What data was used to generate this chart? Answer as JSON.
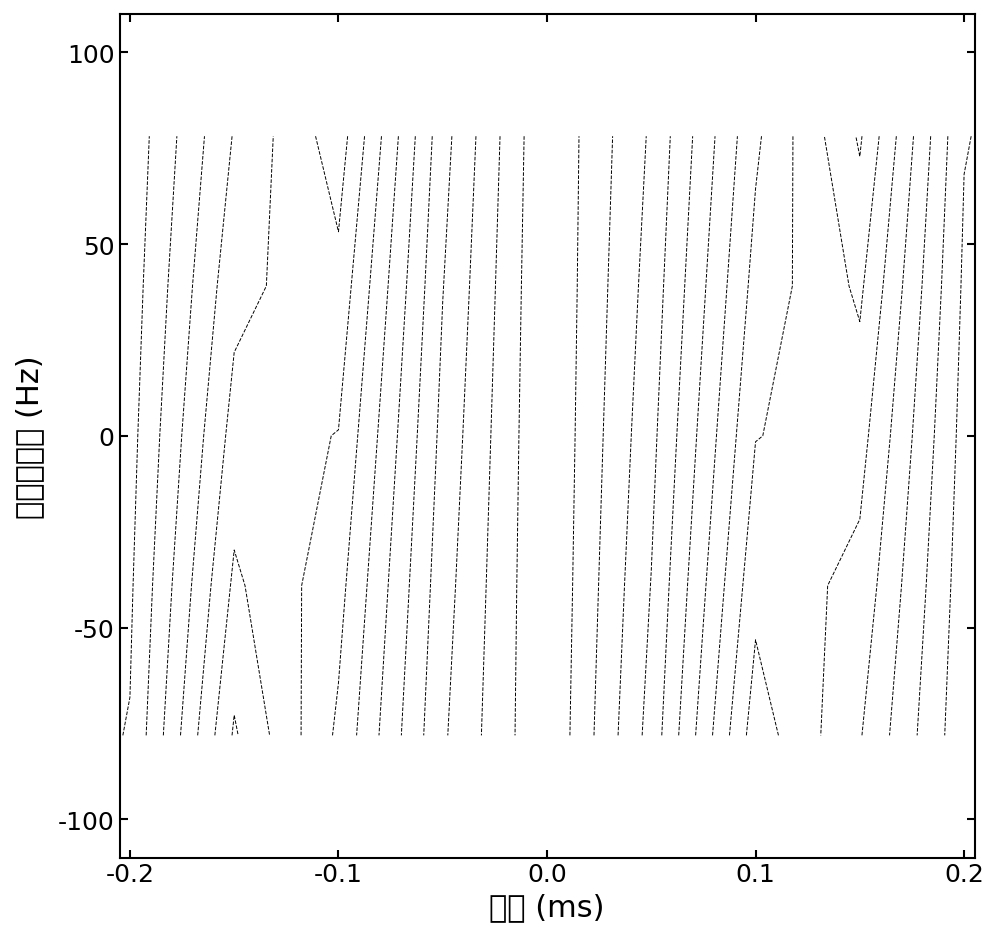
{
  "xlabel": "时延 (ms)",
  "ylabel": "多普勒频率 (Hz)",
  "xlim": [
    -0.205,
    0.205
  ],
  "ylim": [
    -110,
    110
  ],
  "xticks": [
    -0.2,
    -0.1,
    0,
    0.1,
    0.2
  ],
  "yticks": [
    -100,
    -50,
    0,
    50,
    100
  ],
  "xlabel_fontsize": 22,
  "ylabel_fontsize": 22,
  "tick_fontsize": 18,
  "n_contour_levels": 20,
  "background_color": "#ffffff"
}
